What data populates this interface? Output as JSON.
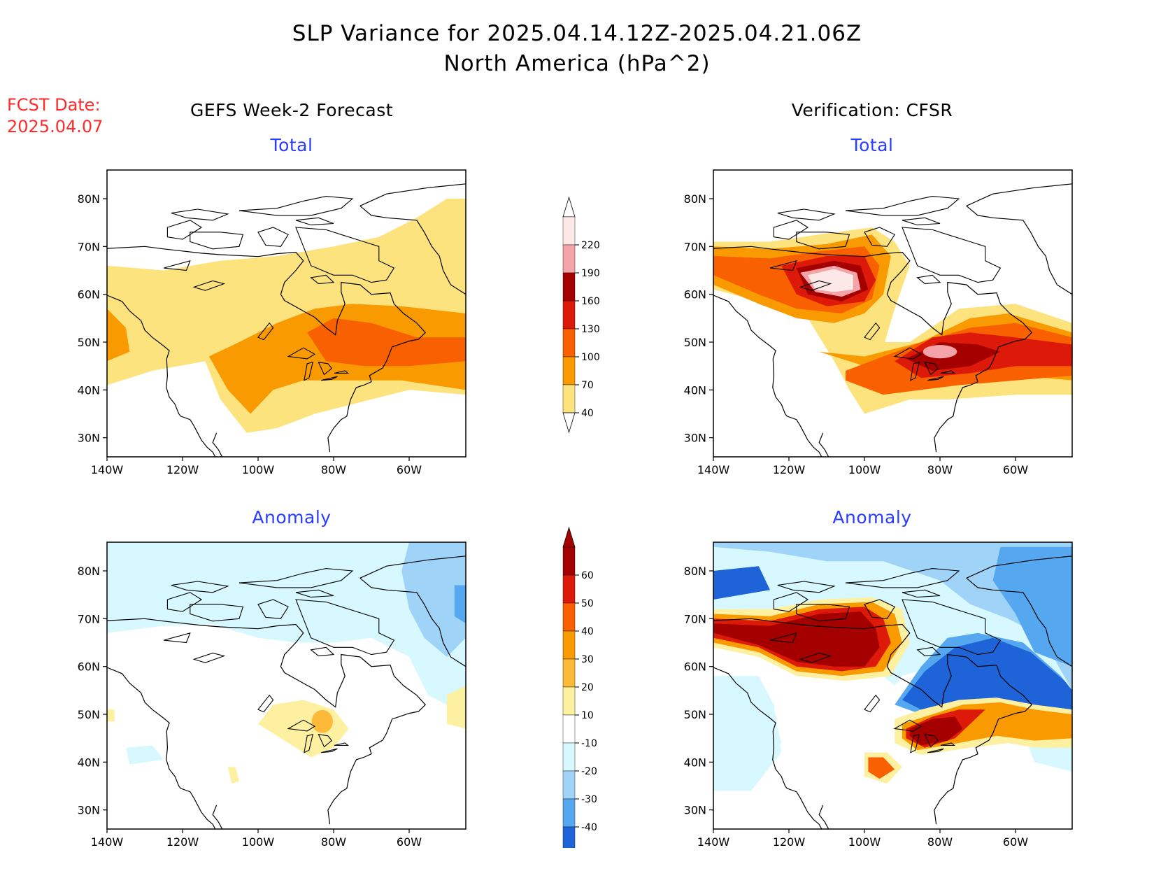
{
  "header": {
    "title_line1": "SLP Variance for 2025.04.14.12Z-2025.04.21.06Z",
    "title_line2": "North America (hPa^2)",
    "fcst_label": "FCST Date:",
    "fcst_value": "2025.04.07"
  },
  "columns": {
    "left_title": "GEFS Week-2 Forecast",
    "right_title": "Verification: CFSR"
  },
  "panels": {
    "total_label": "Total",
    "anomaly_label": "Anomaly"
  },
  "axes": {
    "lat_ticks": [
      "80N",
      "70N",
      "60N",
      "50N",
      "40N",
      "30N"
    ],
    "lon_ticks": [
      "140W",
      "120W",
      "100W",
      "80W",
      "60W"
    ]
  },
  "colorbars": {
    "total": {
      "labels": [
        "220",
        "190",
        "160",
        "130",
        "100",
        "70",
        "40"
      ],
      "colors": [
        "#fde8e8",
        "#f4a3a8",
        "#a50000",
        "#dd1a0a",
        "#f86000",
        "#f99a00",
        "#fde37d"
      ]
    },
    "anomaly": {
      "labels": [
        "60",
        "50",
        "40",
        "30",
        "20",
        "10",
        "-10",
        "-20",
        "-30",
        "-40"
      ],
      "colors": [
        "#a50000",
        "#dd1a0a",
        "#f86000",
        "#f99a00",
        "#fdb938",
        "#fdf0a0",
        "#ffffff",
        "#d8f8ff",
        "#9fd4f8",
        "#55a8f0",
        "#1e64d8"
      ]
    }
  },
  "palette": {
    "t40": "#fde37d",
    "t70": "#f99a00",
    "t100": "#f86000",
    "t130": "#dd1a0a",
    "t160": "#a50000",
    "t190": "#f4a3a8",
    "t220": "#fde8e8",
    "a10": "#fdf0a0",
    "a20": "#fdb938",
    "a30": "#f99a00",
    "a40": "#f86000",
    "a50": "#dd1a0a",
    "a60": "#a50000",
    "n10": "#d8f8ff",
    "n20": "#9fd4f8",
    "n30": "#55a8f0",
    "n40": "#1e64d8"
  }
}
